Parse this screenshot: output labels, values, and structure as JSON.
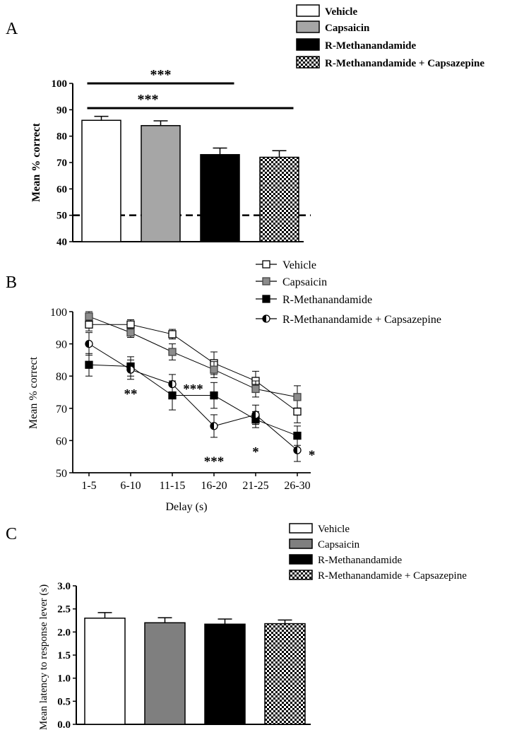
{
  "figure": {
    "panels": [
      {
        "label": "A"
      },
      {
        "label": "B"
      },
      {
        "label": "C"
      }
    ]
  },
  "colors": {
    "vehicle": "#ffffff",
    "capsaicin_a": "#a6a6a6",
    "capsaicin_b": "#8c8c8c",
    "capsaicin_c": "#7f7f7f",
    "methanandamide": "#000000",
    "checker_dark": "#000000",
    "checker_light": "#ffffff",
    "axis": "#000000"
  },
  "chart_data": [
    {
      "type": "bar",
      "panel": "A",
      "categories": [
        "Vehicle",
        "Capsaicin",
        "R-Methanandamide",
        "R-Methanandamide + Capsazepine"
      ],
      "values": [
        86,
        84,
        73,
        72
      ],
      "errors": [
        1.5,
        1.8,
        2.5,
        2.5
      ],
      "fills": [
        "white",
        "gray",
        "black",
        "checker"
      ],
      "ylabel": "Mean % correct",
      "ylim": [
        40,
        100
      ],
      "yticks": [
        "40",
        "50",
        "60",
        "70",
        "80",
        "90",
        "100"
      ],
      "reference_line": 50,
      "significance": [
        {
          "from": 0,
          "to": 2,
          "label": "***"
        },
        {
          "from": 0,
          "to": 3,
          "label": "***"
        }
      ],
      "legend": [
        "Vehicle",
        "Capsaicin",
        "R-Methanandamide",
        "R-Methanandamide + Capsazepine"
      ],
      "legend_position": "top-right"
    },
    {
      "type": "line",
      "panel": "B",
      "categories": [
        "1-5",
        "6-10",
        "11-15",
        "16-20",
        "21-25",
        "26-30"
      ],
      "series": [
        {
          "name": "Vehicle",
          "marker": "open-square",
          "values": [
            96,
            96,
            93,
            84,
            78.5,
            69
          ],
          "errors": [
            2,
            1.5,
            1.5,
            3.5,
            3,
            3.5
          ]
        },
        {
          "name": "Capsaicin",
          "marker": "gray-square",
          "values": [
            98.5,
            93.5,
            87.5,
            82,
            76,
            73.5
          ],
          "errors": [
            1.5,
            1.5,
            2.5,
            2.5,
            2.5,
            3.5
          ]
        },
        {
          "name": "R-Methanandamide",
          "marker": "filled-square",
          "values": [
            83.5,
            83,
            74,
            74,
            66.5,
            61.5
          ],
          "errors": [
            3.5,
            3,
            4.5,
            4,
            2.5,
            3
          ]
        },
        {
          "name": "R-Methanandamide + Capsazepine",
          "marker": "half-circle",
          "values": [
            90,
            82,
            77.5,
            64.5,
            68,
            57
          ],
          "errors": [
            3.5,
            3,
            3,
            3.5,
            3,
            3.5
          ]
        }
      ],
      "annotations": [
        {
          "x": 1,
          "y": 74.5,
          "label": "**"
        },
        {
          "x": 2.5,
          "y": 76,
          "label": "***"
        },
        {
          "x": 3,
          "y": 53.5,
          "label": "***"
        },
        {
          "x": 4,
          "y": 56.5,
          "label": "*"
        },
        {
          "x": 5.35,
          "y": 55.5,
          "label": "*"
        }
      ],
      "xlabel": "Delay (s)",
      "ylabel": "Mean % correct",
      "ylim": [
        50,
        100
      ],
      "yticks": [
        "50",
        "60",
        "70",
        "80",
        "90",
        "100"
      ],
      "legend": [
        "Vehicle",
        "Capsaicin",
        "R-Methanandamide",
        "R-Methanandamide + Capsazepine"
      ],
      "legend_position": "top-right"
    },
    {
      "type": "bar",
      "panel": "C",
      "categories": [
        "Vehicle",
        "Capsaicin",
        "R-Methanandamide",
        "R-Methanandamide + Capsazepine"
      ],
      "values": [
        2.3,
        2.2,
        2.17,
        2.18
      ],
      "errors": [
        0.12,
        0.11,
        0.11,
        0.08
      ],
      "fills": [
        "white",
        "gray",
        "black",
        "checker"
      ],
      "ylabel": "Mean latency to response lever (s)",
      "ylim": [
        0,
        3
      ],
      "yticks": [
        "0.0",
        "0.5",
        "1.0",
        "1.5",
        "2.0",
        "2.5",
        "3.0"
      ],
      "legend": [
        "Vehicle",
        "Capsaicin",
        "R-Methanandamide",
        "R-Methanandamide + Capsazepine"
      ],
      "legend_position": "top-right"
    }
  ]
}
